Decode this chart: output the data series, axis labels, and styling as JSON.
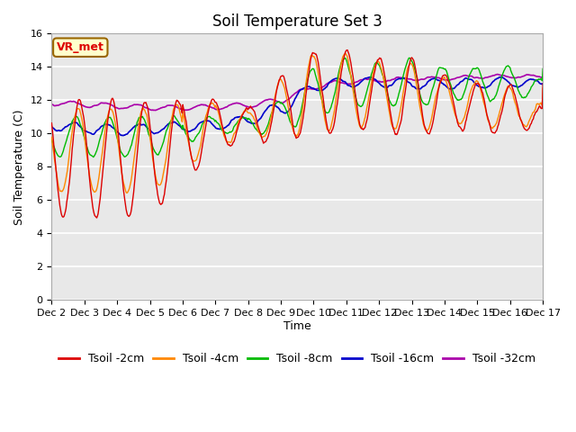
{
  "title": "Soil Temperature Set 3",
  "xlabel": "Time",
  "ylabel": "Soil Temperature (C)",
  "ylim": [
    0,
    16
  ],
  "yticks": [
    0,
    2,
    4,
    6,
    8,
    10,
    12,
    14,
    16
  ],
  "x_labels": [
    "Dec 2",
    "Dec 3",
    "Dec 4",
    "Dec 5",
    "Dec 6",
    "Dec 7",
    "Dec 8",
    "Dec 9",
    "Dec 10",
    "Dec 11",
    "Dec 12",
    "Dec 13",
    "Dec 14",
    "Dec 15",
    "Dec 16",
    "Dec 17"
  ],
  "colors": {
    "Tsoil -2cm": "#dd0000",
    "Tsoil -4cm": "#ff8800",
    "Tsoil -8cm": "#00bb00",
    "Tsoil -16cm": "#0000cc",
    "Tsoil -32cm": "#aa00aa"
  },
  "annotation_text": "VR_met",
  "annotation_box_color": "#ffffcc",
  "annotation_box_edge": "#996600",
  "plot_bg_color": "#e8e8e8",
  "grid_color": "#ffffff",
  "title_fontsize": 12,
  "axis_fontsize": 9,
  "tick_fontsize": 8,
  "legend_fontsize": 9
}
